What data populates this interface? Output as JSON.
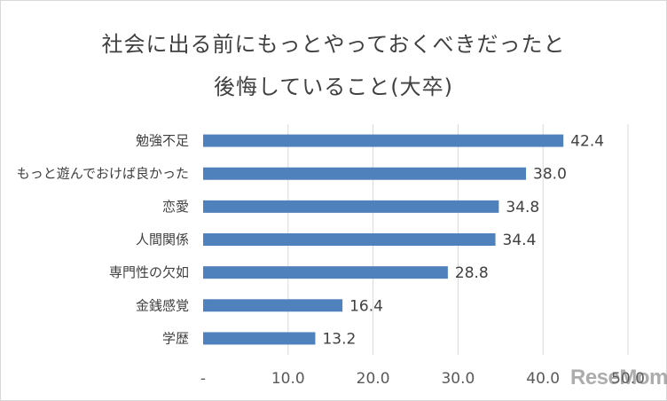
{
  "chart_data": {
    "type": "bar",
    "orientation": "horizontal",
    "title_lines": [
      "社会に出る前にもっとやっておくべきだったと",
      "後悔していること(大卒)"
    ],
    "categories": [
      "勉強不足",
      "もっと遊んでおけば良かった",
      "恋愛",
      "人間関係",
      "専門性の欠如",
      "金銭感覚",
      "学歴"
    ],
    "values": [
      42.4,
      38.0,
      34.8,
      34.4,
      28.8,
      16.4,
      13.2
    ],
    "value_labels": [
      "42.4",
      "38.0",
      "34.8",
      "34.4",
      "28.8",
      "16.4",
      "13.2"
    ],
    "x_ticks": [
      "-",
      "10.0",
      "20.0",
      "30.0",
      "40.0",
      "50.0"
    ],
    "xlim": [
      0,
      50
    ],
    "grid": "vertical",
    "bar_color": "#4f81bd"
  },
  "watermark": "ReseMom"
}
